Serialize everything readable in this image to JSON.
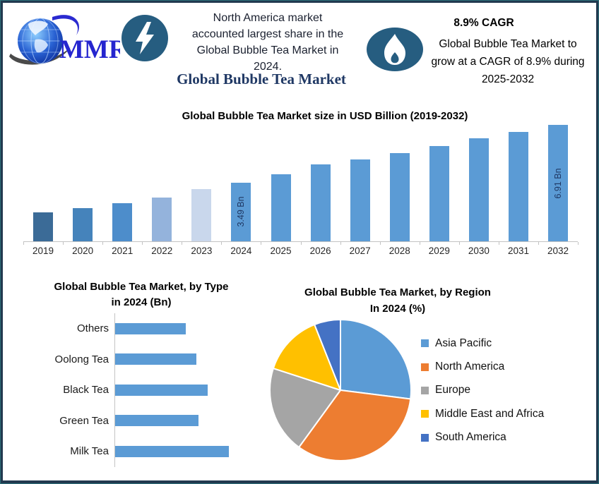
{
  "frame": {
    "outer_border_color": "#2d7078",
    "inner_border_color": "#21394f",
    "background": "#ffffff"
  },
  "header": {
    "logo_text": "MMR",
    "note": [
      "North America market",
      "accounted largest share in the",
      "Global Bubble Tea Market in",
      "2024."
    ],
    "title": "Global Bubble Tea Market",
    "title_color": "#1f3864",
    "cagr_title": "8.9% CAGR",
    "cagr_note": [
      "Global Bubble Tea Market to",
      "grow at a CAGR of 8.9% during",
      "2025-2032"
    ],
    "badge_color": "#265d80"
  },
  "chart_data": [
    {
      "type": "bar",
      "title": "Global Bubble Tea Market size in USD Billion (2019-2032)",
      "categories": [
        "2019",
        "2020",
        "2021",
        "2022",
        "2023",
        "2024",
        "2025",
        "2026",
        "2027",
        "2028",
        "2029",
        "2030",
        "2031",
        "2032"
      ],
      "values": [
        1.7,
        1.95,
        2.25,
        2.6,
        3.1,
        3.49,
        4.0,
        4.55,
        4.85,
        5.25,
        5.65,
        6.1,
        6.5,
        6.91
      ],
      "unit": "USD Billion",
      "ylim": [
        0,
        6.91
      ],
      "grid": false,
      "bar_colors": [
        "#3b6b97",
        "#4583bb",
        "#4d8dcb",
        "#94b3dc",
        "#c9d7ec",
        "#5b9bd5",
        "#5b9bd5",
        "#5b9bd5",
        "#5b9bd5",
        "#5b9bd5",
        "#5b9bd5",
        "#5b9bd5",
        "#5b9bd5",
        "#5b9bd5"
      ],
      "bar_labels": [
        {
          "index": 5,
          "text": "3.49 Bn"
        },
        {
          "index": 13,
          "text": "6.91 Bn"
        }
      ],
      "label_color": "#1f3864"
    },
    {
      "type": "bar",
      "orientation": "horizontal",
      "title": [
        "Global Bubble Tea Market, by Type",
        "in 2024 (Bn)"
      ],
      "categories": [
        "Others",
        "Oolong Tea",
        "Black Tea",
        "Green Tea",
        "Milk Tea"
      ],
      "values": [
        0.56,
        0.64,
        0.73,
        0.66,
        0.9
      ],
      "unit": "Bn",
      "xlim": [
        0,
        0.9
      ],
      "grid": false,
      "bar_color": "#5b9bd5"
    },
    {
      "type": "pie",
      "title": [
        "Global Bubble Tea Market, by Region",
        "In 2024 (%)"
      ],
      "labels": [
        "Asia Pacific",
        "North America",
        "Europe",
        "Middle East and Africa",
        "South America"
      ],
      "values": [
        27,
        33,
        20,
        14,
        6
      ],
      "unit": "%",
      "colors": [
        "#5b9bd5",
        "#ed7d31",
        "#a5a5a5",
        "#ffc000",
        "#4472c4"
      ],
      "legend_position": "right",
      "start_angle_deg": 0,
      "direction": "clockwise",
      "slice_border_color": "#ffffff"
    }
  ]
}
